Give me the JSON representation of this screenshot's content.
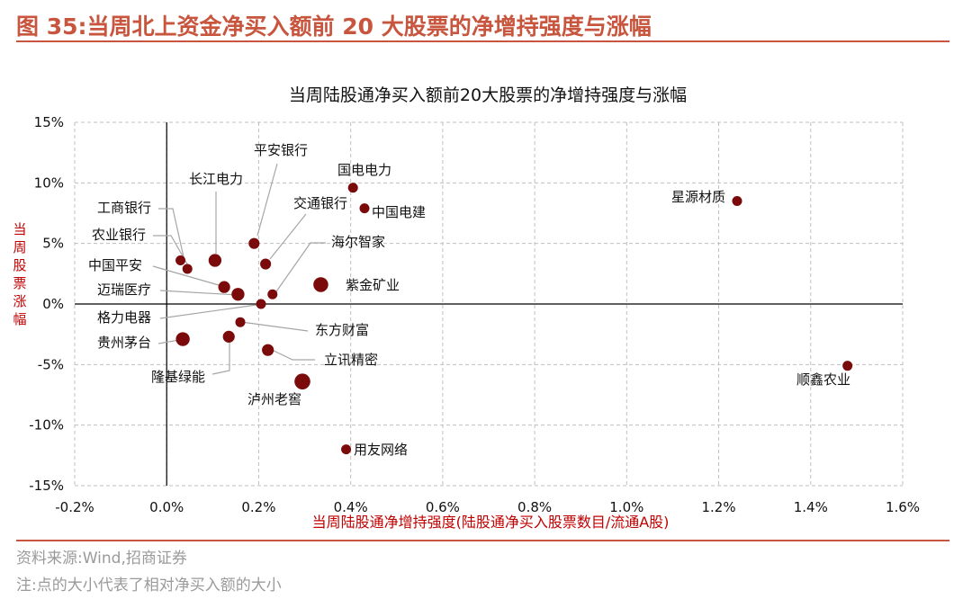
{
  "figure": {
    "title": "图 35:当周北上资金净买入额前 20 大股票的净增持强度与涨幅",
    "source": "资料来源:Wind,招商证券",
    "note": "注:点的大小代表了相对净买入额的大小"
  },
  "colors": {
    "accent": "#c8553d",
    "point": "#7b0a0a",
    "axis_title": "#c00000",
    "grid": "#bfbfbf"
  },
  "chart_data": {
    "type": "scatter",
    "title": "当周陆股通净买入额前20大股票的净增持强度与涨幅",
    "xlabel": "当周陆股通净增持强度(陆股通净买入股票数目/流通A股)",
    "ylabel": "当周股票涨幅",
    "xlim": [
      -0.2,
      1.6
    ],
    "ylim": [
      -15,
      15
    ],
    "x_ticks": [
      "-0.2%",
      "0.0%",
      "0.2%",
      "0.4%",
      "0.6%",
      "0.8%",
      "1.0%",
      "1.2%",
      "1.4%",
      "1.6%"
    ],
    "y_ticks": [
      "15%",
      "10%",
      "5%",
      "0%",
      "-5%",
      "-10%",
      "-15%"
    ],
    "grid": true,
    "points": [
      {
        "name": "星源材质",
        "x": 1.24,
        "y": 8.5,
        "size": 1
      },
      {
        "name": "顺鑫农业",
        "x": 1.48,
        "y": -5.1,
        "size": 1
      },
      {
        "name": "国电电力",
        "x": 0.405,
        "y": 9.6,
        "size": 1
      },
      {
        "name": "中国电建",
        "x": 0.43,
        "y": 7.9,
        "size": 1
      },
      {
        "name": "平安银行",
        "x": 0.19,
        "y": 5.0,
        "size": 1.1
      },
      {
        "name": "长江电力",
        "x": 0.105,
        "y": 3.6,
        "size": 1.3
      },
      {
        "name": "交通银行",
        "x": 0.215,
        "y": 3.3,
        "size": 1.1
      },
      {
        "name": "工商银行",
        "x": 0.03,
        "y": 3.6,
        "size": 1
      },
      {
        "name": "农业银行",
        "x": 0.045,
        "y": 2.9,
        "size": 1
      },
      {
        "name": "海尔智家",
        "x": 0.23,
        "y": 0.8,
        "size": 1
      },
      {
        "name": "中国平安",
        "x": 0.125,
        "y": 1.4,
        "size": 1.2
      },
      {
        "name": "迈瑞医疗",
        "x": 0.155,
        "y": 0.8,
        "size": 1.3
      },
      {
        "name": "紫金矿业",
        "x": 0.335,
        "y": 1.6,
        "size": 1.5
      },
      {
        "name": "格力电器",
        "x": 0.205,
        "y": 0.0,
        "size": 1
      },
      {
        "name": "东方财富",
        "x": 0.16,
        "y": -1.5,
        "size": 1
      },
      {
        "name": "贵州茅台",
        "x": 0.035,
        "y": -2.9,
        "size": 1.4
      },
      {
        "name": "隆基绿能",
        "x": 0.135,
        "y": -2.7,
        "size": 1.2
      },
      {
        "name": "立讯精密",
        "x": 0.22,
        "y": -3.8,
        "size": 1.2
      },
      {
        "name": "泸州老窖",
        "x": 0.295,
        "y": -6.4,
        "size": 1.6
      },
      {
        "name": "用友网络",
        "x": 0.39,
        "y": -12.0,
        "size": 1
      }
    ]
  }
}
